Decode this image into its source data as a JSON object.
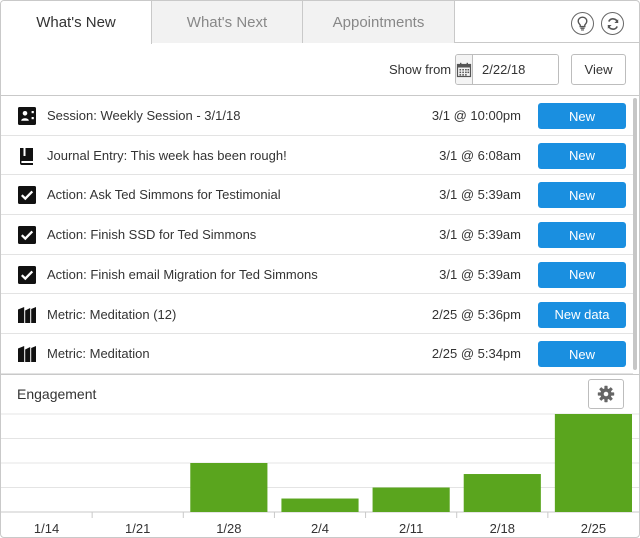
{
  "tabs": [
    {
      "label": "What's New",
      "active": true
    },
    {
      "label": "What's Next",
      "active": false
    },
    {
      "label": "Appointments",
      "active": false
    }
  ],
  "header_icons": [
    "lightbulb-icon",
    "refresh-icon"
  ],
  "toolbar": {
    "show_from_label": "Show from",
    "date_value": "2/22/18",
    "calendar_icon": "calendar-icon",
    "view_label": "View"
  },
  "items": [
    {
      "icon": "session-icon",
      "type": "Session:",
      "text": "Weekly Session - 3/1/18",
      "time": "3/1 @ 10:00pm",
      "button": "New"
    },
    {
      "icon": "journal-icon",
      "type": "Journal Entry:",
      "text": "This week has been rough!",
      "time": "3/1 @ 6:08am",
      "button": "New"
    },
    {
      "icon": "checkbox-icon",
      "type": "Action:",
      "text": "Ask Ted Simmons for Testimonial",
      "time": "3/1 @ 5:39am",
      "button": "New"
    },
    {
      "icon": "checkbox-icon",
      "type": "Action:",
      "text": "Finish SSD for Ted Simmons",
      "time": "3/1 @ 5:39am",
      "button": "New"
    },
    {
      "icon": "checkbox-icon",
      "type": "Action:",
      "text": "Finish email Migration for Ted Simmons",
      "time": "3/1 @ 5:39am",
      "button": "New"
    },
    {
      "icon": "metric-icon",
      "type": "Metric:",
      "text": "Meditation (12)",
      "time": "2/25 @ 5:36pm",
      "button": "New data"
    },
    {
      "icon": "metric-icon",
      "type": "Metric:",
      "text": "Meditation",
      "time": "2/25 @ 5:34pm",
      "button": "New"
    }
  ],
  "engagement": {
    "title": "Engagement",
    "settings_icon": "gear-icon"
  },
  "colors": {
    "accent": "#1a8fe0",
    "bar": "#5aa51e",
    "border": "#c9c9c9"
  },
  "chart_data": {
    "type": "bar",
    "categories": [
      "1/14",
      "1/21",
      "1/28",
      "2/4",
      "2/11",
      "2/18",
      "2/25"
    ],
    "values": [
      0,
      0,
      2,
      0.55,
      1,
      1.55,
      4
    ],
    "ylim": [
      0,
      4
    ],
    "grid": true
  }
}
